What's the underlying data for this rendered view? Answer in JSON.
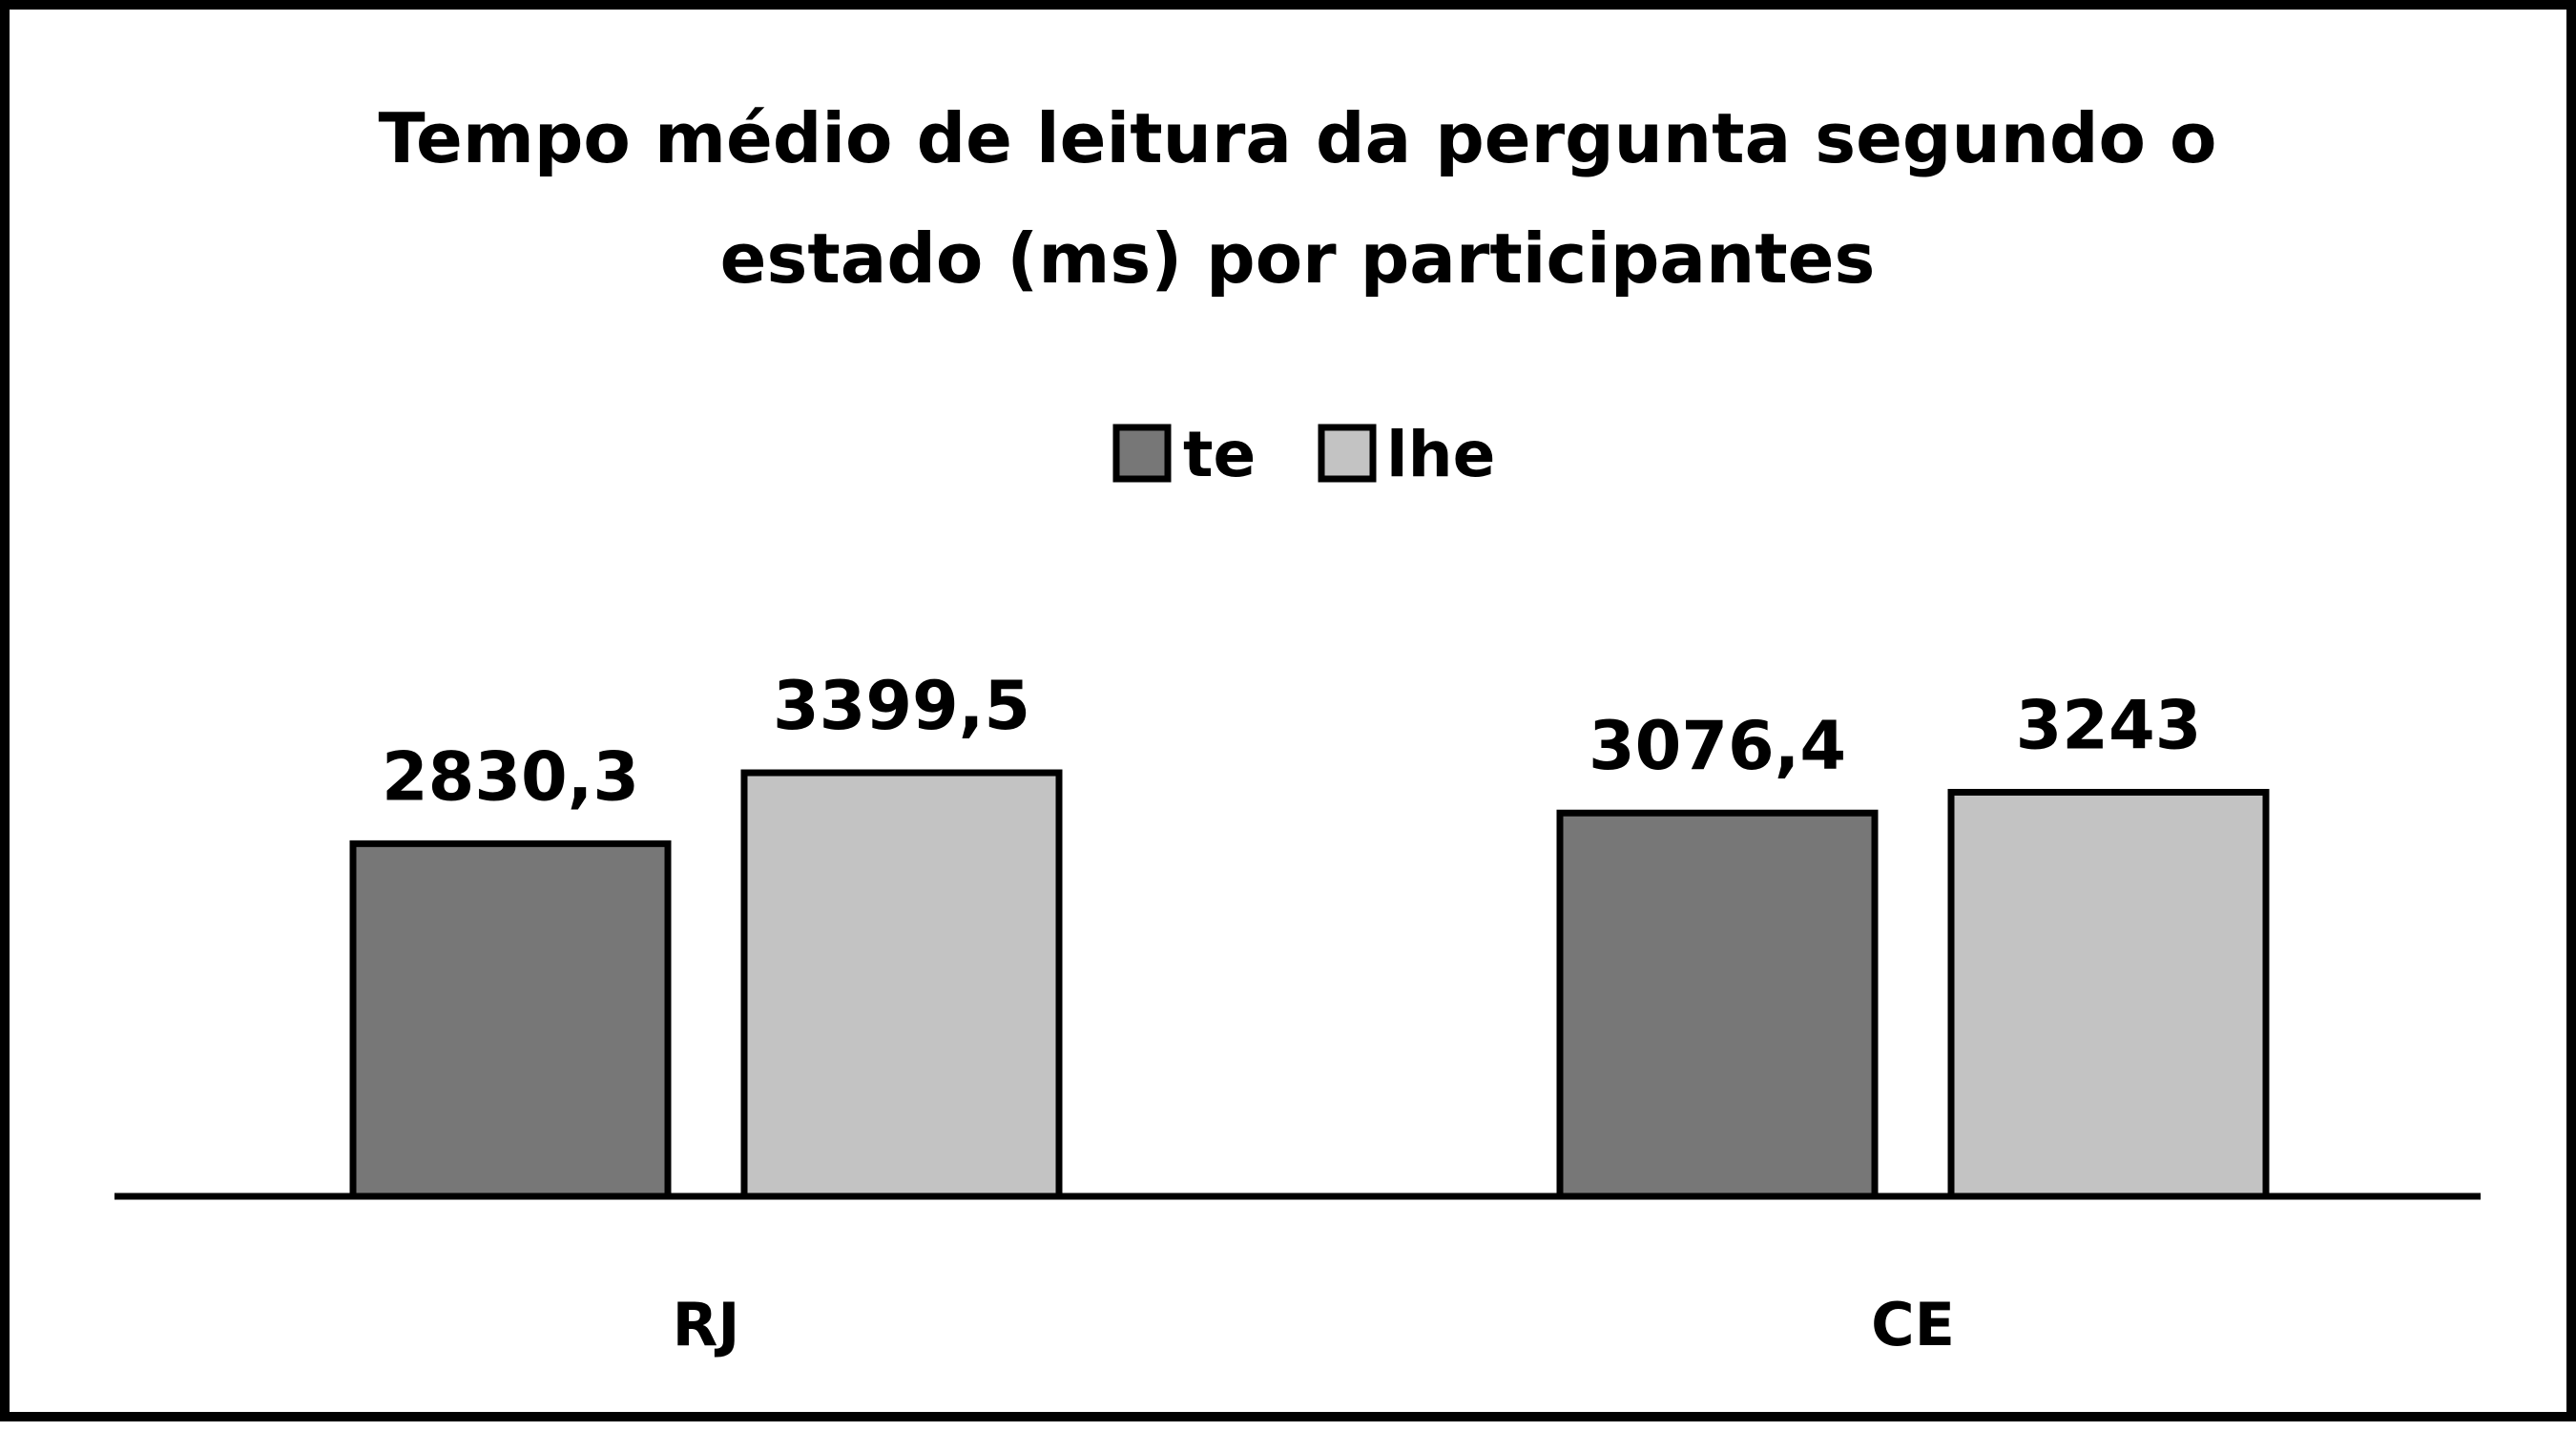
{
  "chart_data": {
    "type": "bar",
    "title_lines": [
      "Tempo médio de leitura da pergunta segundo o",
      "estado (ms) por participantes"
    ],
    "categories": [
      "RJ",
      "CE"
    ],
    "series": [
      {
        "name": "te",
        "color": "#777777",
        "values": [
          2830.3,
          3076.4
        ],
        "labels": [
          "2830,3",
          "3076,4"
        ]
      },
      {
        "name": "lhe",
        "color": "#c3c3c3",
        "values": [
          3399.5,
          3243
        ],
        "labels": [
          "3399,5",
          "3243"
        ]
      }
    ],
    "xlabel": "",
    "ylabel": "",
    "ylim": [
      0,
      3500
    ],
    "grid": false,
    "legend_position": "top-center",
    "data_labels": true
  }
}
